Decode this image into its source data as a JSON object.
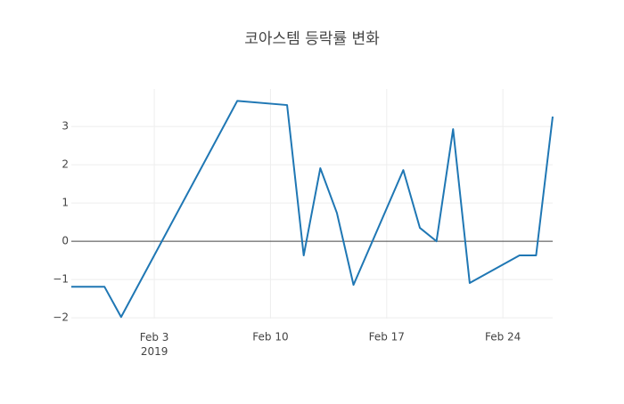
{
  "chart_data": {
    "type": "line",
    "title": "코아스템 등락률 변화",
    "x": [
      "2019-01-29",
      "2019-01-31",
      "2019-02-01",
      "2019-02-08",
      "2019-02-11",
      "2019-02-12",
      "2019-02-13",
      "2019-02-14",
      "2019-02-15",
      "2019-02-18",
      "2019-02-19",
      "2019-02-20",
      "2019-02-21",
      "2019-02-22",
      "2019-02-25",
      "2019-02-26",
      "2019-02-27"
    ],
    "series": [
      {
        "color": "#1f77b4",
        "values": [
          -1.19,
          -1.19,
          -1.98,
          3.67,
          3.56,
          -0.37,
          1.91,
          0.74,
          -1.14,
          1.86,
          0.35,
          0.0,
          2.93,
          -1.09,
          -0.37,
          -0.37,
          3.26
        ]
      }
    ],
    "xlim": [
      "2019-01-29",
      "2019-02-27"
    ],
    "xticks": [
      {
        "value": "2019-02-03",
        "label": "Feb 3\n2019"
      },
      {
        "value": "2019-02-10",
        "label": "Feb 10"
      },
      {
        "value": "2019-02-17",
        "label": "Feb 17"
      },
      {
        "value": "2019-02-24",
        "label": "Feb 24"
      }
    ],
    "ylim": [
      -2.02,
      3.98
    ],
    "yticks": [
      {
        "value": -2,
        "label": "−2"
      },
      {
        "value": -1,
        "label": "−1"
      },
      0,
      1,
      2,
      3
    ],
    "grid": true,
    "zeroline": true
  }
}
